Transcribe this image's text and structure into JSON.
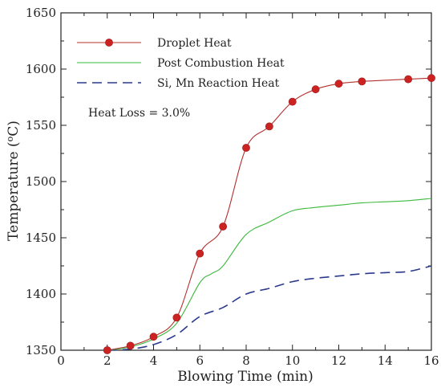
{
  "chart_data": {
    "type": "line",
    "title": "",
    "xlabel": "Blowing Time (min)",
    "ylabel": "Temperature (°C)",
    "ylabel_main": "Temperature (",
    "ylabel_sup": "o",
    "ylabel_unit": "C)",
    "xlim": [
      0,
      16
    ],
    "ylim": [
      1350,
      1650
    ],
    "xticks": [
      0,
      2,
      4,
      6,
      8,
      10,
      12,
      14,
      16
    ],
    "yticks": [
      1350,
      1400,
      1450,
      1500,
      1550,
      1600,
      1650
    ],
    "grid": false,
    "legend_position": "top-left",
    "annotation": "Heat Loss = 3.0%",
    "series": [
      {
        "name": "Droplet Heat",
        "style": "solid-with-markers",
        "color": "#b4302e",
        "marker_color": "#cc2222",
        "x": [
          2,
          3,
          4,
          5,
          6,
          7,
          8,
          9,
          10,
          11,
          12,
          13,
          15,
          16
        ],
        "y": [
          1350,
          1354,
          1362,
          1379,
          1436,
          1460,
          1530,
          1549,
          1571,
          1582,
          1587,
          1589,
          1591,
          1592
        ],
        "markers": [
          {
            "x": 2,
            "y": 1350
          },
          {
            "x": 3,
            "y": 1354
          },
          {
            "x": 4,
            "y": 1362
          },
          {
            "x": 5,
            "y": 1379
          },
          {
            "x": 6,
            "y": 1436
          },
          {
            "x": 7,
            "y": 1460
          },
          {
            "x": 8,
            "y": 1530
          },
          {
            "x": 9,
            "y": 1549
          },
          {
            "x": 10,
            "y": 1571
          },
          {
            "x": 11,
            "y": 1582
          },
          {
            "x": 12,
            "y": 1587
          },
          {
            "x": 13,
            "y": 1589
          },
          {
            "x": 15,
            "y": 1591
          },
          {
            "x": 16,
            "y": 1592
          }
        ]
      },
      {
        "name": "Post Combustion Heat",
        "style": "solid",
        "color": "#3cb83c",
        "x": [
          2,
          3,
          4,
          5,
          6,
          6.5,
          7,
          8,
          9,
          10,
          11,
          12,
          13,
          14,
          15,
          16
        ],
        "y": [
          1350,
          1353,
          1360,
          1374,
          1410,
          1418,
          1425,
          1453,
          1464,
          1474,
          1477,
          1479,
          1481,
          1482,
          1483,
          1485
        ]
      },
      {
        "name": "Si, Mn Reaction Heat",
        "style": "dashed",
        "color": "#2b3a8c",
        "x": [
          2,
          3,
          4,
          5,
          6,
          7,
          8,
          9,
          10,
          11,
          12,
          13,
          14,
          15,
          16
        ],
        "y": [
          1350,
          1351,
          1355,
          1364,
          1380,
          1388,
          1400,
          1405,
          1411,
          1414,
          1416,
          1418,
          1419,
          1420,
          1425
        ]
      }
    ]
  }
}
